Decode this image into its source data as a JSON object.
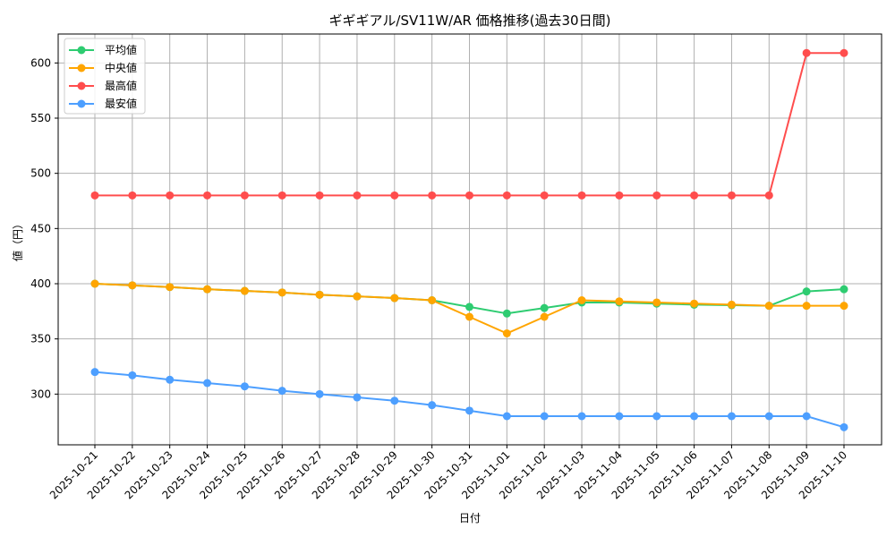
{
  "chart_data": {
    "type": "line",
    "title": "ギギギアル/SV11W/AR 価格推移(過去30日間)",
    "xlabel": "日付",
    "ylabel": "値（円）",
    "ylim": [
      252,
      625
    ],
    "yticks": [
      300,
      350,
      400,
      450,
      500,
      550,
      600
    ],
    "grid": true,
    "legend_position": "upper left",
    "categories": [
      "2025-10-21",
      "2025-10-22",
      "2025-10-23",
      "2025-10-24",
      "2025-10-25",
      "2025-10-26",
      "2025-10-27",
      "2025-10-28",
      "2025-10-29",
      "2025-10-30",
      "2025-10-31",
      "2025-11-01",
      "2025-11-02",
      "2025-11-03",
      "2025-11-04",
      "2025-11-05",
      "2025-11-06",
      "2025-11-07",
      "2025-11-08",
      "2025-11-09",
      "2025-11-10"
    ],
    "series": [
      {
        "name": "平均値",
        "color": "#2ecc71",
        "values": [
          400,
          398.5,
          397,
          395,
          393.5,
          392,
          390,
          388.5,
          387,
          385,
          379,
          373,
          378,
          383,
          383,
          382,
          381,
          380.5,
          380,
          393,
          395
        ]
      },
      {
        "name": "中央値",
        "color": "#ffa500",
        "values": [
          400,
          398.5,
          397,
          395,
          393.5,
          392,
          390,
          388.5,
          387,
          385,
          370,
          355,
          370,
          385,
          384,
          383,
          382,
          381,
          380,
          380,
          380
        ]
      },
      {
        "name": "最高値",
        "color": "#ff4d4d",
        "values": [
          480,
          480,
          480,
          480,
          480,
          480,
          480,
          480,
          480,
          480,
          480,
          480,
          480,
          480,
          480,
          480,
          480,
          480,
          480,
          609,
          609
        ]
      },
      {
        "name": "最安値",
        "color": "#4d9fff",
        "values": [
          320,
          317,
          313,
          310,
          307,
          303,
          300,
          297,
          294,
          290,
          285,
          280,
          280,
          280,
          280,
          280,
          280,
          280,
          280,
          280,
          270
        ]
      }
    ]
  }
}
